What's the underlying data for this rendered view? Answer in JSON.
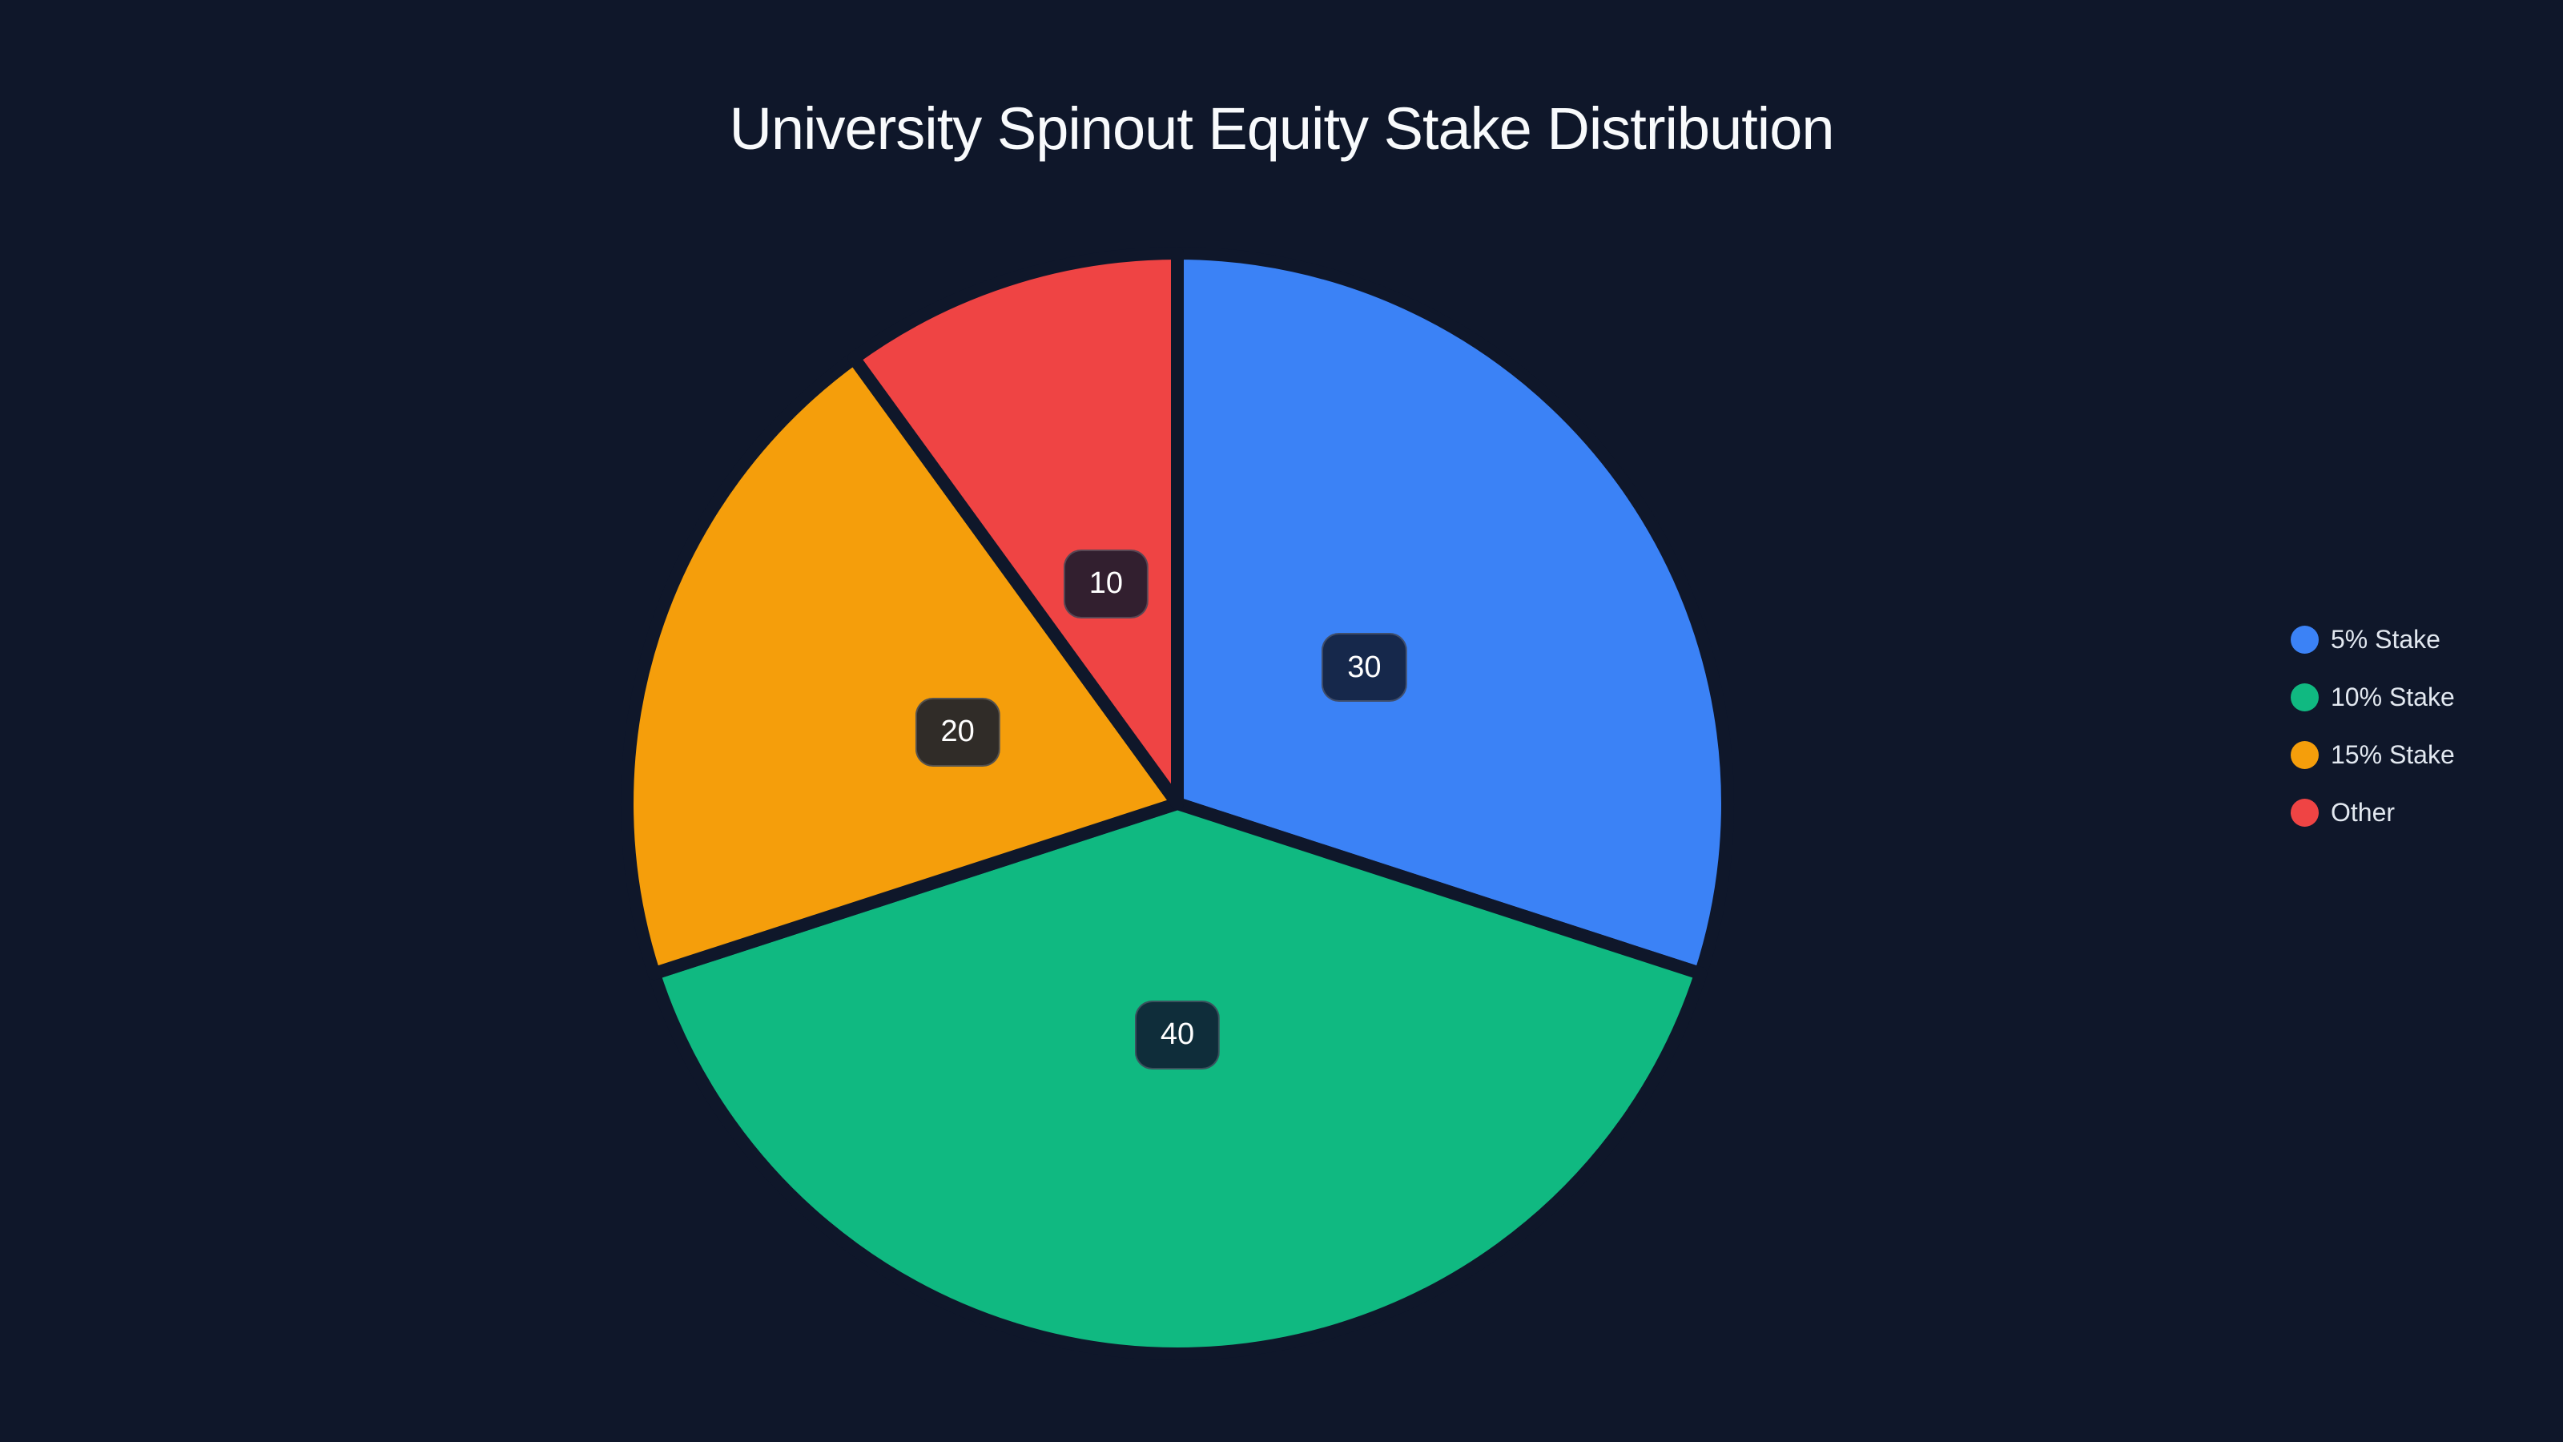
{
  "chart_data": {
    "type": "pie",
    "title": "University Spinout Equity Stake Distribution",
    "categories": [
      "5% Stake",
      "10% Stake",
      "15% Stake",
      "Other"
    ],
    "values": [
      30,
      40,
      20,
      10
    ],
    "colors": [
      "#3b82f6",
      "#10b981",
      "#f59e0b",
      "#ef4444"
    ],
    "label_bg": [
      "#16284b",
      "#0f2d3a",
      "#302c28",
      "#321f2f"
    ],
    "start_angle": "12 o'clock",
    "direction": "clockwise",
    "legend_position": "right",
    "background": "#0f172a"
  },
  "legend": {
    "items": [
      {
        "label": "5% Stake",
        "color": "#3b82f6"
      },
      {
        "label": "10% Stake",
        "color": "#10b981"
      },
      {
        "label": "15% Stake",
        "color": "#f59e0b"
      },
      {
        "label": "Other",
        "color": "#ef4444"
      }
    ]
  }
}
